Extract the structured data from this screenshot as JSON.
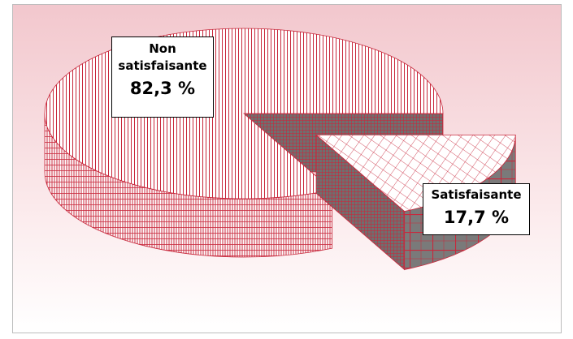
{
  "chart_data": {
    "type": "pie3d",
    "categories": [
      "Non satisfaisante",
      "Satisfaisante"
    ],
    "values": [
      82.3,
      17.7
    ],
    "value_labels": [
      "82,3 %",
      "17,7 %"
    ],
    "colors": [
      "#c8283c",
      "#c8283c"
    ]
  }
}
